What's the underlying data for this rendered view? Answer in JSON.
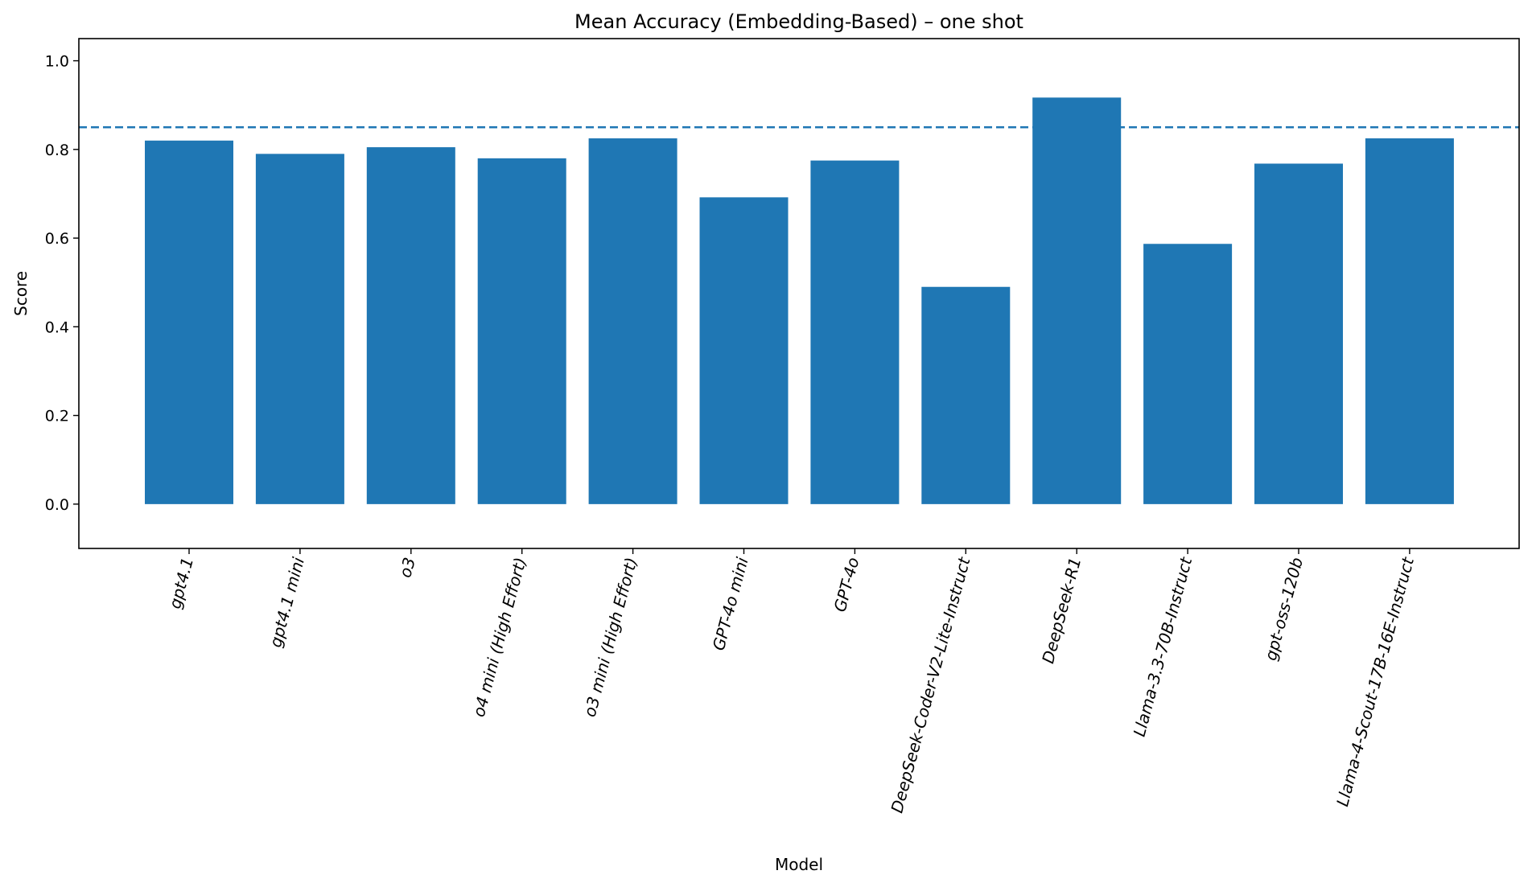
{
  "chart_data": {
    "type": "bar",
    "title": "Mean Accuracy (Embedding-Based) – one shot",
    "xlabel": "Model",
    "ylabel": "Score",
    "ylim": [
      -0.1,
      1.05
    ],
    "yticks": [
      "0.0",
      "0.2",
      "0.4",
      "0.6",
      "0.8",
      "1.0"
    ],
    "grid": false,
    "bar_color": "#1f77b4",
    "reference_line": {
      "value": 0.85,
      "style": "dashed",
      "color": "#1f77b4"
    },
    "categories": [
      "gpt4.1",
      "gpt4.1 mini",
      "o3",
      "o4 mini (High Effort)",
      "o3 mini (High Effort)",
      "GPT-4o mini",
      "GPT-4o",
      "DeepSeek-Coder-V2-Lite-Instruct",
      "DeepSeek-R1",
      "Llama-3.3-70B-Instruct",
      "gpt-oss-120b",
      "Llama-4-Scout-17B-16E-Instruct"
    ],
    "values": [
      0.82,
      0.79,
      0.805,
      0.78,
      0.825,
      0.692,
      0.775,
      0.49,
      0.917,
      0.587,
      0.768,
      0.825
    ]
  }
}
